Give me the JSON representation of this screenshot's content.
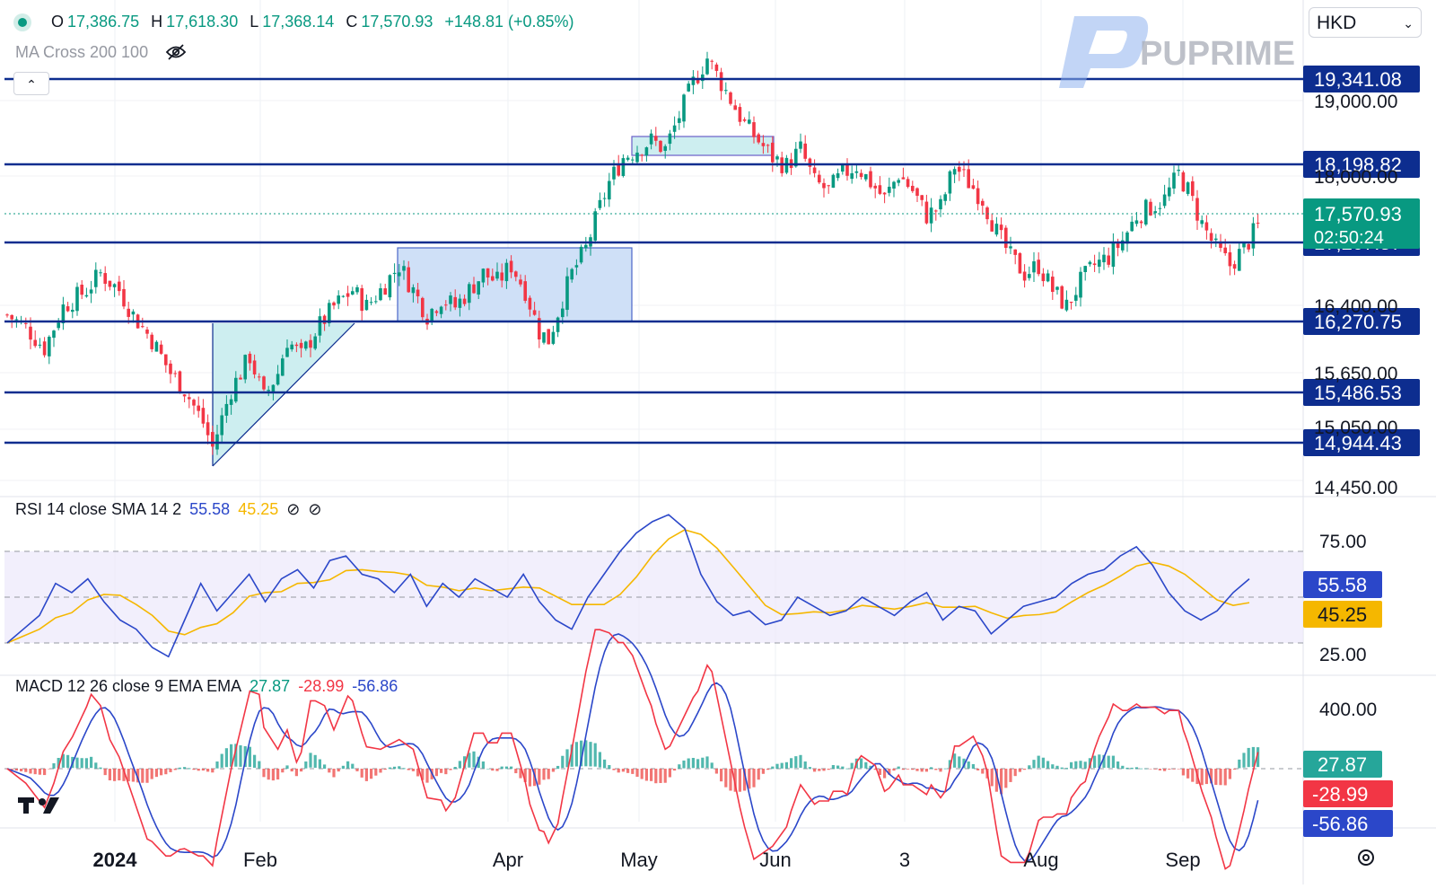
{
  "header": {
    "ohlc": [
      {
        "label": "O",
        "value": "17,386.75"
      },
      {
        "label": "H",
        "value": "17,618.30"
      },
      {
        "label": "L",
        "value": "17,368.14"
      },
      {
        "label": "C",
        "value": "17,570.93"
      }
    ],
    "change": "+148.81 (+0.85%)",
    "ma_indicator": "MA Cross 200 100",
    "currency": "HKD",
    "brand": "PUPRIME"
  },
  "icons": {
    "status": "status-dot-icon",
    "visibility": "eye-off-icon",
    "collapse": "chevron-up-icon",
    "currency_menu": "chevron-down-icon",
    "logo": "tradingview-logo-icon",
    "settings": "gear-icon"
  },
  "colors": {
    "up": "#089981",
    "down": "#f23645",
    "level_line": "#0d2d8f",
    "rsi_line": "#2b47c9",
    "rsi_ma": "#f5b700",
    "macd_line": "#2b47c9",
    "signal_line": "#f23645",
    "box_fill": "#cfe0f7",
    "triangle_fill": "#cdeef0"
  },
  "chart_data": [
    {
      "type": "candlestick",
      "instrument_currency": "HKD",
      "time_labels": [
        "2024",
        "Feb",
        "Apr",
        "May",
        "Jun",
        "3",
        "Aug",
        "Sep"
      ],
      "price_ticks": [
        "19,000.00",
        "18,000.00",
        "16,400.00",
        "15,650.00",
        "15,050.00",
        "14,450.00"
      ],
      "level_lines": [
        19341.08,
        18198.82,
        17207.57,
        16270.75,
        15486.53,
        14944.43
      ],
      "level_labels": [
        "19,341.08",
        "18,198.82",
        "17,207.57",
        "16,270.75",
        "15,486.53",
        "14,944.43"
      ],
      "last_price_label": "17,570.93",
      "countdown": "02:50:24",
      "close_path": [
        [
          0,
          16500
        ],
        [
          4,
          16350
        ],
        [
          8,
          16100
        ],
        [
          12,
          16600
        ],
        [
          17,
          16800
        ],
        [
          20,
          17000
        ],
        [
          24,
          16800
        ],
        [
          27,
          16500
        ],
        [
          31,
          16200
        ],
        [
          35,
          15800
        ],
        [
          38,
          15600
        ],
        [
          42,
          15200
        ],
        [
          44,
          14900
        ],
        [
          48,
          15600
        ],
        [
          52,
          16000
        ],
        [
          55,
          15500
        ],
        [
          58,
          15800
        ],
        [
          60,
          16200
        ],
        [
          63,
          16000
        ],
        [
          66,
          16300
        ],
        [
          70,
          16600
        ],
        [
          74,
          16800
        ],
        [
          77,
          16600
        ],
        [
          80,
          16800
        ],
        [
          84,
          17100
        ],
        [
          87,
          16800
        ],
        [
          90,
          16500
        ],
        [
          93,
          16700
        ],
        [
          96,
          16600
        ],
        [
          99,
          16800
        ],
        [
          102,
          17000
        ],
        [
          105,
          16900
        ],
        [
          108,
          17100
        ],
        [
          111,
          16800
        ],
        [
          114,
          16300
        ],
        [
          116,
          16200
        ],
        [
          119,
          16700
        ],
        [
          121,
          17000
        ],
        [
          124,
          17300
        ],
        [
          127,
          17800
        ],
        [
          129,
          18100
        ],
        [
          132,
          18400
        ],
        [
          135,
          18500
        ],
        [
          138,
          18600
        ],
        [
          141,
          18500
        ],
        [
          144,
          18900
        ],
        [
          147,
          19300
        ],
        [
          150,
          19600
        ],
        [
          153,
          19300
        ],
        [
          155,
          19100
        ],
        [
          158,
          18800
        ],
        [
          161,
          18600
        ],
        [
          164,
          18400
        ],
        [
          167,
          18300
        ],
        [
          170,
          18500
        ],
        [
          173,
          18100
        ],
        [
          176,
          18000
        ],
        [
          179,
          18200
        ],
        [
          182,
          18300
        ],
        [
          185,
          18100
        ],
        [
          188,
          17900
        ],
        [
          191,
          18200
        ],
        [
          194,
          18000
        ],
        [
          197,
          17700
        ],
        [
          200,
          17800
        ],
        [
          203,
          18300
        ],
        [
          206,
          18100
        ],
        [
          209,
          17900
        ],
        [
          212,
          17500
        ],
        [
          215,
          17200
        ],
        [
          218,
          17000
        ],
        [
          221,
          17100
        ],
        [
          224,
          16800
        ],
        [
          227,
          16600
        ],
        [
          230,
          16900
        ],
        [
          233,
          17100
        ],
        [
          236,
          17200
        ],
        [
          239,
          17400
        ],
        [
          242,
          17700
        ],
        [
          245,
          17800
        ],
        [
          248,
          17900
        ],
        [
          251,
          18200
        ],
        [
          253,
          18000
        ],
        [
          256,
          17600
        ],
        [
          259,
          17300
        ],
        [
          262,
          17100
        ],
        [
          265,
          17300
        ],
        [
          268,
          17571
        ]
      ],
      "rsi": {
        "label": "RSI 14 close SMA 14 2",
        "rsi_value": "55.58",
        "rsi_ma_value": "45.25",
        "ticks": [
          "75.00",
          "25.00"
        ],
        "upper": 70,
        "middle": 50,
        "lower": 30,
        "values": [
          30,
          36,
          42,
          56,
          52,
          58,
          48,
          40,
          36,
          28,
          24,
          40,
          56,
          44,
          52,
          60,
          48,
          58,
          62,
          54,
          66,
          68,
          60,
          58,
          52,
          60,
          46,
          56,
          50,
          58,
          54,
          50,
          60,
          48,
          40,
          36,
          50,
          60,
          70,
          78,
          83,
          86,
          80,
          60,
          48,
          42,
          44,
          38,
          40,
          50,
          46,
          42,
          44,
          50,
          46,
          42,
          48,
          52,
          40,
          46,
          44,
          34,
          40,
          46,
          48,
          50,
          56,
          60,
          62,
          68,
          72,
          64,
          52,
          44,
          40,
          44,
          52,
          58
        ]
      },
      "macd": {
        "label": "MACD 12 26 close 9 EMA EMA",
        "hist_value": "27.87",
        "macd_value": "-28.99",
        "signal_value": "-56.86",
        "ticks": [
          "400.00"
        ]
      }
    }
  ]
}
